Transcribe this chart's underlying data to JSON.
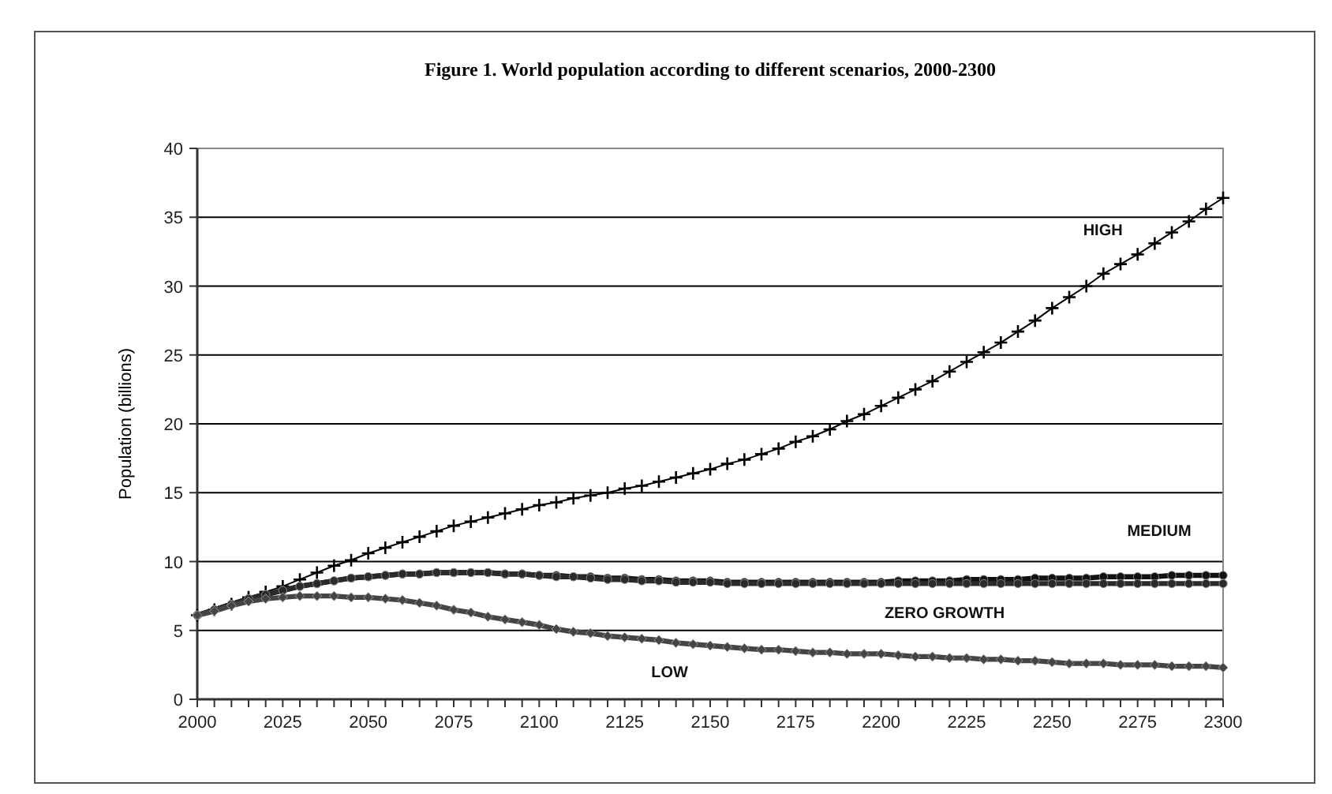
{
  "chart_data": {
    "type": "line",
    "title": "Figure 1. World population according to different scenarios, 2000-2300",
    "ylabel": "Population (billions)",
    "x": [
      2000,
      2005,
      2010,
      2015,
      2020,
      2025,
      2030,
      2035,
      2040,
      2045,
      2050,
      2055,
      2060,
      2065,
      2070,
      2075,
      2080,
      2085,
      2090,
      2095,
      2100,
      2105,
      2110,
      2115,
      2120,
      2125,
      2130,
      2135,
      2140,
      2145,
      2150,
      2155,
      2160,
      2165,
      2170,
      2175,
      2180,
      2185,
      2190,
      2195,
      2200,
      2205,
      2210,
      2215,
      2220,
      2225,
      2230,
      2235,
      2240,
      2245,
      2250,
      2255,
      2260,
      2265,
      2270,
      2275,
      2280,
      2285,
      2290,
      2295,
      2300
    ],
    "xlim": [
      2000,
      2300
    ],
    "xticks": [
      2000,
      {
        "value": 2005,
        "label": null
      },
      {
        "value": 2010,
        "label": null
      },
      {
        "value": 2015,
        "label": null
      },
      {
        "value": 2020,
        "label": null
      },
      2025,
      {
        "value": 2030,
        "label": null
      },
      {
        "value": 2035,
        "label": null
      },
      {
        "value": 2040,
        "label": null
      },
      {
        "value": 2045,
        "label": null
      },
      2050,
      {
        "value": 2055,
        "label": null
      },
      {
        "value": 2060,
        "label": null
      },
      {
        "value": 2065,
        "label": null
      },
      {
        "value": 2070,
        "label": null
      },
      2075,
      {
        "value": 2080,
        "label": null
      },
      {
        "value": 2085,
        "label": null
      },
      {
        "value": 2090,
        "label": null
      },
      {
        "value": 2095,
        "label": null
      },
      2100,
      {
        "value": 2105,
        "label": null
      },
      {
        "value": 2110,
        "label": null
      },
      {
        "value": 2115,
        "label": null
      },
      {
        "value": 2120,
        "label": null
      },
      2125,
      {
        "value": 2130,
        "label": null
      },
      {
        "value": 2135,
        "label": null
      },
      {
        "value": 2140,
        "label": null
      },
      {
        "value": 2145,
        "label": null
      },
      2150,
      {
        "value": 2155,
        "label": null
      },
      {
        "value": 2160,
        "label": null
      },
      {
        "value": 2165,
        "label": null
      },
      {
        "value": 2170,
        "label": null
      },
      2175,
      {
        "value": 2180,
        "label": null
      },
      {
        "value": 2185,
        "label": null
      },
      {
        "value": 2190,
        "label": null
      },
      {
        "value": 2195,
        "label": null
      },
      2200,
      {
        "value": 2205,
        "label": null
      },
      {
        "value": 2210,
        "label": null
      },
      {
        "value": 2215,
        "label": null
      },
      {
        "value": 2220,
        "label": null
      },
      2225,
      {
        "value": 2230,
        "label": null
      },
      {
        "value": 2235,
        "label": null
      },
      {
        "value": 2240,
        "label": null
      },
      {
        "value": 2245,
        "label": null
      },
      2250,
      {
        "value": 2255,
        "label": null
      },
      {
        "value": 2260,
        "label": null
      },
      {
        "value": 2265,
        "label": null
      },
      {
        "value": 2270,
        "label": null
      },
      2275,
      {
        "value": 2280,
        "label": null
      },
      {
        "value": 2285,
        "label": null
      },
      {
        "value": 2290,
        "label": null
      },
      {
        "value": 2295,
        "label": null
      },
      2300
    ],
    "ylim": [
      0,
      40
    ],
    "yticks": [
      0,
      5,
      10,
      15,
      20,
      25,
      30,
      35,
      40
    ],
    "grid": "y",
    "series": [
      {
        "name": "HIGH",
        "color": "#000000",
        "marker": "cross",
        "values": [
          6.1,
          6.5,
          6.9,
          7.4,
          7.8,
          8.2,
          8.7,
          9.2,
          9.7,
          10.1,
          10.6,
          11.0,
          11.4,
          11.8,
          12.2,
          12.6,
          12.9,
          13.2,
          13.5,
          13.8,
          14.1,
          14.3,
          14.6,
          14.8,
          15.0,
          15.3,
          15.5,
          15.8,
          16.1,
          16.4,
          16.7,
          17.1,
          17.4,
          17.8,
          18.2,
          18.7,
          19.1,
          19.6,
          20.2,
          20.7,
          21.3,
          21.9,
          22.5,
          23.1,
          23.8,
          24.5,
          25.2,
          25.9,
          26.7,
          27.5,
          28.4,
          29.2,
          30.0,
          30.9,
          31.6,
          32.3,
          33.1,
          33.9,
          34.7,
          35.6,
          36.4
        ]
      },
      {
        "name": "MEDIUM",
        "color": "#111111",
        "marker": "circle",
        "values": [
          6.1,
          6.5,
          6.9,
          7.3,
          7.6,
          7.9,
          8.2,
          8.4,
          8.6,
          8.8,
          8.9,
          9.0,
          9.1,
          9.1,
          9.2,
          9.2,
          9.2,
          9.2,
          9.1,
          9.1,
          9.0,
          9.0,
          8.9,
          8.9,
          8.8,
          8.8,
          8.7,
          8.7,
          8.6,
          8.6,
          8.6,
          8.5,
          8.5,
          8.5,
          8.5,
          8.5,
          8.5,
          8.5,
          8.5,
          8.5,
          8.5,
          8.6,
          8.6,
          8.6,
          8.6,
          8.7,
          8.7,
          8.7,
          8.7,
          8.8,
          8.8,
          8.8,
          8.8,
          8.9,
          8.9,
          8.9,
          8.9,
          9.0,
          9.0,
          9.0,
          9.0
        ]
      },
      {
        "name": "ZERO GROWTH",
        "color": "#2a2a2a",
        "marker": "circle",
        "values": [
          6.1,
          6.5,
          6.9,
          7.3,
          7.6,
          7.9,
          8.2,
          8.4,
          8.6,
          8.8,
          8.9,
          9.0,
          9.1,
          9.1,
          9.2,
          9.2,
          9.2,
          9.2,
          9.1,
          9.1,
          9.0,
          8.9,
          8.9,
          8.8,
          8.7,
          8.7,
          8.6,
          8.6,
          8.5,
          8.5,
          8.5,
          8.4,
          8.4,
          8.4,
          8.4,
          8.4,
          8.4,
          8.4,
          8.4,
          8.4,
          8.4,
          8.4,
          8.4,
          8.4,
          8.4,
          8.4,
          8.4,
          8.4,
          8.4,
          8.4,
          8.4,
          8.4,
          8.4,
          8.4,
          8.4,
          8.4,
          8.4,
          8.4,
          8.4,
          8.4,
          8.4
        ]
      },
      {
        "name": "LOW",
        "color": "#444444",
        "marker": "diamond",
        "values": [
          6.1,
          6.4,
          6.8,
          7.1,
          7.3,
          7.4,
          7.5,
          7.5,
          7.5,
          7.4,
          7.4,
          7.3,
          7.2,
          7.0,
          6.8,
          6.5,
          6.3,
          6.0,
          5.8,
          5.6,
          5.4,
          5.1,
          4.9,
          4.8,
          4.6,
          4.5,
          4.4,
          4.3,
          4.1,
          4.0,
          3.9,
          3.8,
          3.7,
          3.6,
          3.6,
          3.5,
          3.4,
          3.4,
          3.3,
          3.3,
          3.3,
          3.2,
          3.1,
          3.1,
          3.0,
          3.0,
          2.9,
          2.9,
          2.8,
          2.8,
          2.7,
          2.6,
          2.6,
          2.6,
          2.5,
          2.5,
          2.5,
          2.4,
          2.4,
          2.4,
          2.3
        ]
      }
    ]
  }
}
